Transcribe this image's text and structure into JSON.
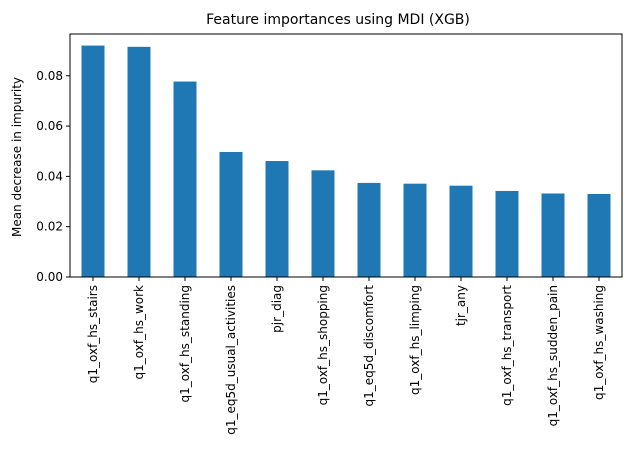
{
  "chart_data": {
    "type": "bar",
    "title": "Feature importances using MDI (XGB)",
    "xlabel": "",
    "ylabel": "Mean decrease in impurity",
    "categories": [
      "q1_oxf_hs_stairs",
      "q1_oxf_hs_work",
      "q1_oxf_hs_standing",
      "q1_eq5d_usual_activities",
      "pjr_diag",
      "q1_oxf_hs_shopping",
      "q1_eq5d_discomfort",
      "q1_oxf_hs_limping",
      "tjr_any",
      "q1_oxf_hs_transport",
      "q1_oxf_hs_sudden_pain",
      "q1_oxf_hs_washing"
    ],
    "values": [
      0.092,
      0.0915,
      0.0777,
      0.0497,
      0.0461,
      0.0424,
      0.0374,
      0.0371,
      0.0363,
      0.0342,
      0.0332,
      0.033
    ],
    "yticks": [
      "0.00",
      "0.02",
      "0.04",
      "0.06",
      "0.08"
    ],
    "ylim": [
      0,
      0.0966
    ],
    "grid": false,
    "legend": "none",
    "bar_color": "#1f77b4"
  }
}
